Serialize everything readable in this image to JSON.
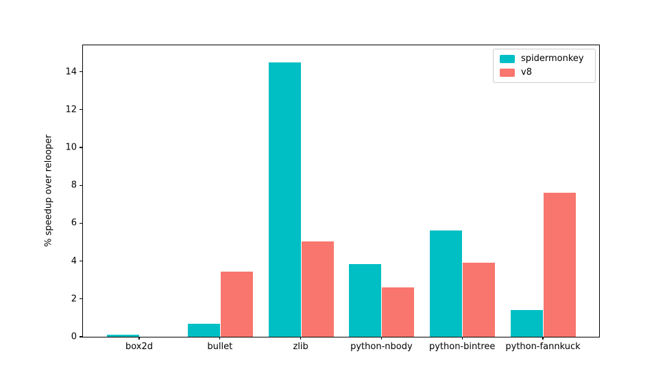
{
  "chart_data": {
    "type": "bar",
    "title": "",
    "xlabel": "",
    "ylabel": "% speedup over relooper",
    "categories": [
      "box2d",
      "bullet",
      "zlib",
      "python-nbody",
      "python-bintree",
      "python-fannkuck"
    ],
    "series": [
      {
        "name": "spidermonkey",
        "color": "#00bfc4",
        "values": [
          0.1,
          0.7,
          14.5,
          3.85,
          5.6,
          1.4
        ]
      },
      {
        "name": "v8",
        "color": "#f8766d",
        "values": [
          0,
          3.45,
          5.05,
          2.6,
          3.9,
          7.6
        ]
      }
    ],
    "ylim": [
      0,
      15.4
    ],
    "yticks": [
      0,
      2,
      4,
      6,
      8,
      10,
      12,
      14
    ],
    "grid": false,
    "legend_position": "upper right",
    "legend_border_color": "#cccccc",
    "spine_color": "#000000"
  }
}
